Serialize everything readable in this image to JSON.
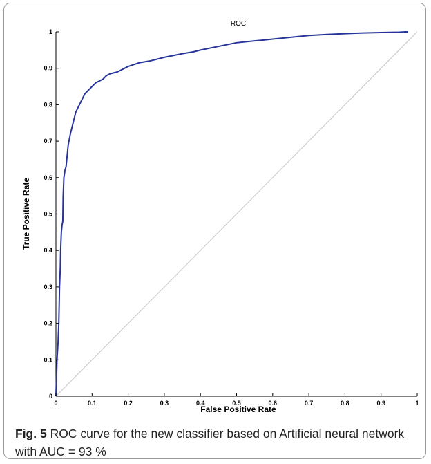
{
  "chart_data": {
    "type": "line",
    "title": "ROC",
    "xlabel": "False Positive Rate",
    "ylabel": "True Positive Rate",
    "xlim": [
      0,
      1
    ],
    "ylim": [
      0,
      1
    ],
    "xticks": [
      "0",
      "0.1",
      "0.2",
      "0.3",
      "0.4",
      "0.5",
      "0.6",
      "0.7",
      "0.8",
      "0.9",
      "1"
    ],
    "yticks": [
      "0",
      "0.1",
      "0.2",
      "0.3",
      "0.4",
      "0.5",
      "0.6",
      "0.7",
      "0.8",
      "0.9",
      "1"
    ],
    "grid": false,
    "series": [
      {
        "color": "#27359a",
        "x": [
          0,
          0.003,
          0.006,
          0.008,
          0.01,
          0.012,
          0.013,
          0.015,
          0.017,
          0.019,
          0.02,
          0.022,
          0.025,
          0.028,
          0.03,
          0.032,
          0.034,
          0.036,
          0.04,
          0.045,
          0.05,
          0.055,
          0.06,
          0.065,
          0.07,
          0.075,
          0.08,
          0.085,
          0.09,
          0.1,
          0.11,
          0.12,
          0.13,
          0.14,
          0.15,
          0.17,
          0.2,
          0.23,
          0.26,
          0.3,
          0.35,
          0.38,
          0.4,
          0.45,
          0.5,
          0.55,
          0.6,
          0.65,
          0.7,
          0.75,
          0.8,
          0.85,
          0.9,
          0.95,
          0.97,
          0.975
        ],
        "y": [
          0,
          0.1,
          0.15,
          0.2,
          0.3,
          0.35,
          0.4,
          0.45,
          0.47,
          0.48,
          0.55,
          0.6,
          0.62,
          0.63,
          0.65,
          0.67,
          0.69,
          0.7,
          0.72,
          0.74,
          0.76,
          0.78,
          0.79,
          0.8,
          0.81,
          0.82,
          0.83,
          0.835,
          0.84,
          0.85,
          0.86,
          0.865,
          0.87,
          0.88,
          0.885,
          0.89,
          0.905,
          0.915,
          0.92,
          0.93,
          0.94,
          0.945,
          0.95,
          0.96,
          0.97,
          0.975,
          0.98,
          0.985,
          0.99,
          0.993,
          0.995,
          0.997,
          0.998,
          0.999,
          1,
          1
        ]
      },
      {
        "color": "#c4c4c4",
        "x": [
          0,
          1
        ],
        "y": [
          0,
          1
        ]
      }
    ]
  },
  "caption": {
    "label": "Fig. 5",
    "text": "ROC curve for the new classifier based on Artificial neural network with AUC = 93 %"
  }
}
